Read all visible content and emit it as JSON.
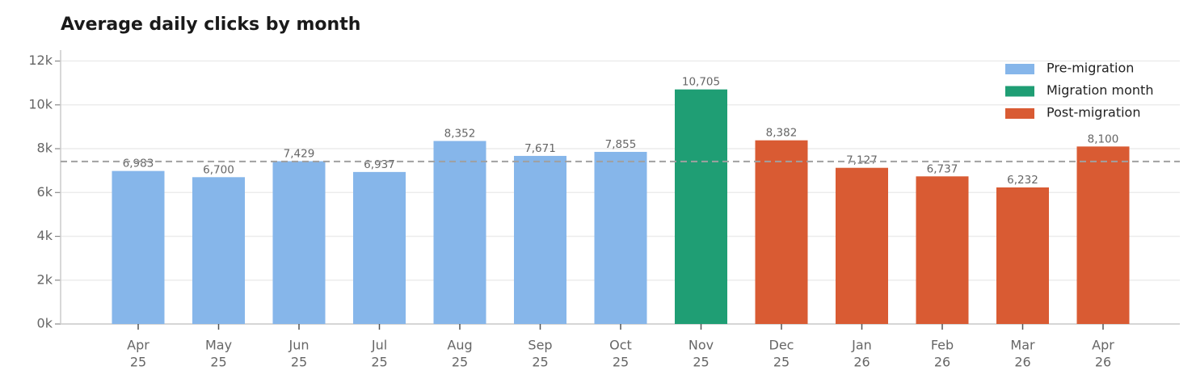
{
  "chart_data": {
    "type": "bar",
    "title": "Average daily clicks by month",
    "categories": [
      [
        "Apr",
        "25"
      ],
      [
        "May",
        "25"
      ],
      [
        "Jun",
        "25"
      ],
      [
        "Jul",
        "25"
      ],
      [
        "Aug",
        "25"
      ],
      [
        "Sep",
        "25"
      ],
      [
        "Oct",
        "25"
      ],
      [
        "Nov",
        "25"
      ],
      [
        "Dec",
        "25"
      ],
      [
        "Jan",
        "26"
      ],
      [
        "Feb",
        "26"
      ],
      [
        "Mar",
        "26"
      ],
      [
        "Apr",
        "26"
      ]
    ],
    "series": [
      {
        "name": "Pre-migration",
        "color": "#86b6ea",
        "values": [
          6983,
          6700,
          7429,
          6937,
          8352,
          7671,
          7855,
          null,
          null,
          null,
          null,
          null,
          null
        ],
        "value_labels": [
          "6,983",
          "6,700",
          "7,429",
          "6,937",
          "8,352",
          "7,671",
          "7,855",
          null,
          null,
          null,
          null,
          null,
          null
        ]
      },
      {
        "name": "Migration month",
        "color": "#1f9e74",
        "values": [
          null,
          null,
          null,
          null,
          null,
          null,
          null,
          10705,
          null,
          null,
          null,
          null,
          null
        ],
        "value_labels": [
          null,
          null,
          null,
          null,
          null,
          null,
          null,
          "10,705",
          null,
          null,
          null,
          null,
          null
        ]
      },
      {
        "name": "Post-migration",
        "color": "#d95b33",
        "values": [
          null,
          null,
          null,
          null,
          null,
          null,
          null,
          null,
          8382,
          7127,
          6737,
          6232,
          8100
        ],
        "value_labels": [
          null,
          null,
          null,
          null,
          null,
          null,
          null,
          null,
          "8,382",
          "7,127",
          "6,737",
          "6,232",
          "8,100"
        ]
      }
    ],
    "reference_line": 7418,
    "ylim": [
      0,
      12500
    ],
    "yticks": [
      {
        "value": 0,
        "label": "0k"
      },
      {
        "value": 2000,
        "label": "2k"
      },
      {
        "value": 4000,
        "label": "4k"
      },
      {
        "value": 6000,
        "label": "6k"
      },
      {
        "value": 8000,
        "label": "8k"
      },
      {
        "value": 10000,
        "label": "10k"
      },
      {
        "value": 12000,
        "label": "12k"
      }
    ],
    "grid": true,
    "legend": "upper right"
  }
}
